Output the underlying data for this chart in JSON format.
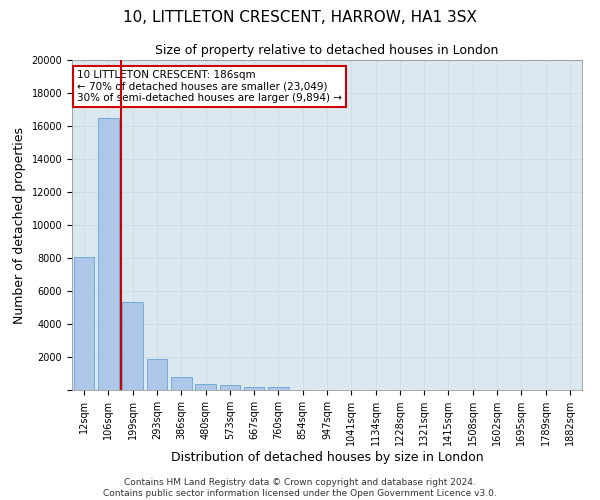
{
  "title": "10, LITTLETON CRESCENT, HARROW, HA1 3SX",
  "subtitle": "Size of property relative to detached houses in London",
  "xlabel": "Distribution of detached houses by size in London",
  "ylabel": "Number of detached properties",
  "categories": [
    "12sqm",
    "106sqm",
    "199sqm",
    "293sqm",
    "386sqm",
    "480sqm",
    "573sqm",
    "667sqm",
    "760sqm",
    "854sqm",
    "947sqm",
    "1041sqm",
    "1134sqm",
    "1228sqm",
    "1321sqm",
    "1415sqm",
    "1508sqm",
    "1602sqm",
    "1695sqm",
    "1789sqm",
    "1882sqm"
  ],
  "values": [
    8050,
    16500,
    5350,
    1850,
    780,
    340,
    280,
    210,
    200,
    0,
    0,
    0,
    0,
    0,
    0,
    0,
    0,
    0,
    0,
    0,
    0
  ],
  "bar_color": "#aec6e8",
  "bar_edge_color": "#5599cc",
  "property_line_color": "#cc0000",
  "property_line_x": 1.5,
  "annotation_text": "10 LITTLETON CRESCENT: 186sqm\n← 70% of detached houses are smaller (23,049)\n30% of semi-detached houses are larger (9,894) →",
  "annotation_box_color": "#cc0000",
  "ylim": [
    0,
    20000
  ],
  "yticks": [
    0,
    2000,
    4000,
    6000,
    8000,
    10000,
    12000,
    14000,
    16000,
    18000,
    20000
  ],
  "grid_color": "#c8d8e8",
  "background_color": "#dce8f0",
  "footer_text": "Contains HM Land Registry data © Crown copyright and database right 2024.\nContains public sector information licensed under the Open Government Licence v3.0.",
  "title_fontsize": 11,
  "subtitle_fontsize": 9,
  "axis_label_fontsize": 9,
  "tick_fontsize": 7,
  "annotation_fontsize": 7.5
}
